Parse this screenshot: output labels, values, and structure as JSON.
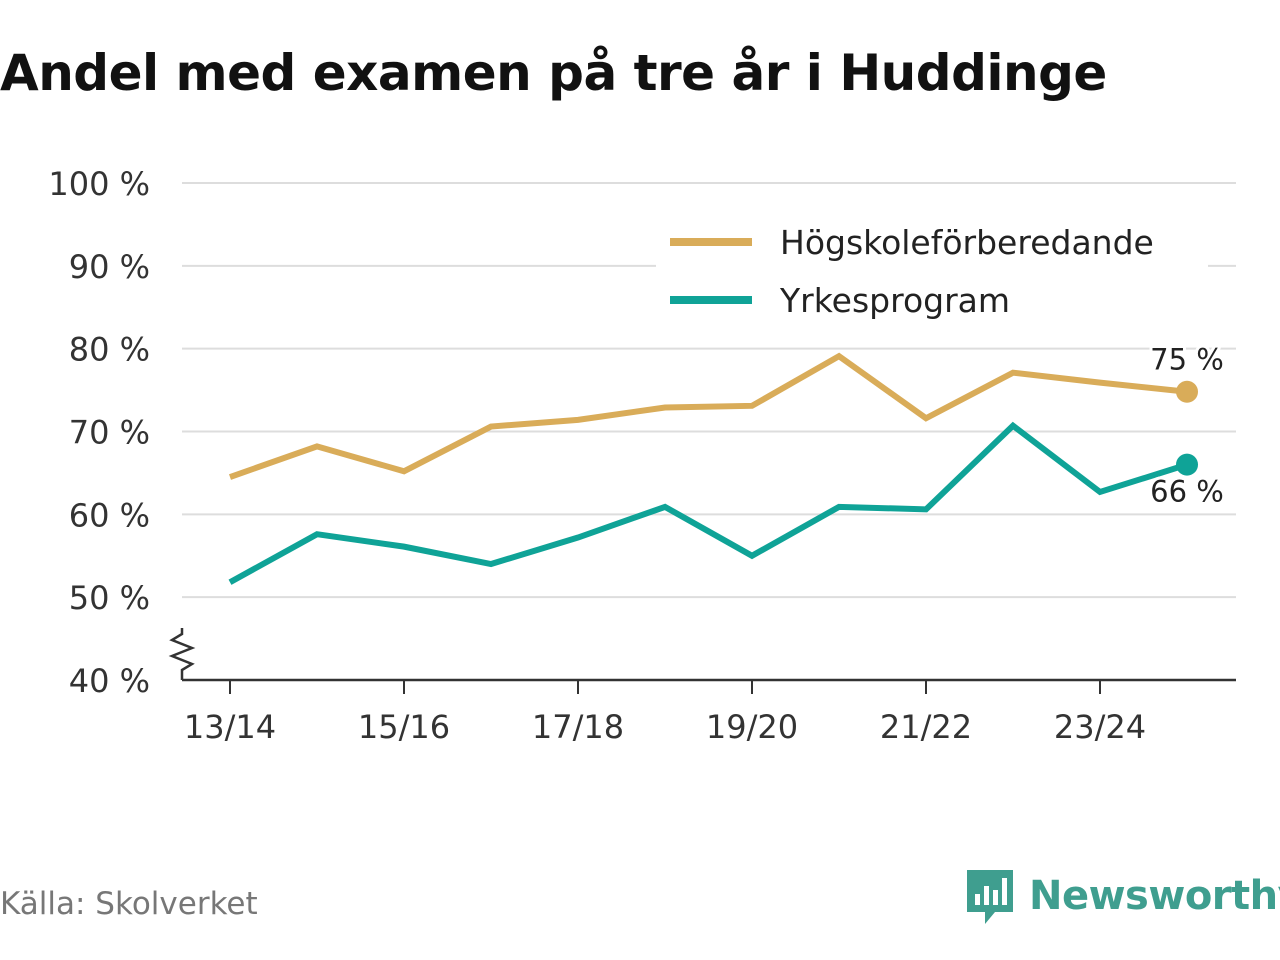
{
  "title": "Andel med examen på tre år i Huddinge",
  "source": "Källa: Skolverket",
  "brand": {
    "name": "Newsworthy",
    "icon": "newsworthy-logo-icon",
    "color": "#3f9e8f"
  },
  "chart_data": {
    "type": "line",
    "x": [
      "13/14",
      "14/15",
      "15/16",
      "16/17",
      "17/18",
      "18/19",
      "19/20",
      "20/21",
      "21/22",
      "22/23",
      "23/24",
      "24/25"
    ],
    "xticks": [
      "13/14",
      "15/16",
      "17/18",
      "19/20",
      "21/22",
      "23/24"
    ],
    "yticks": [
      40,
      50,
      60,
      70,
      80,
      90,
      100
    ],
    "ytick_suffix": " %",
    "ylim": [
      40,
      100
    ],
    "axis_break": true,
    "grid": true,
    "legend_position": "top-right",
    "series": [
      {
        "name": "Högskoleförberedande",
        "color": "#d9ac59",
        "values": [
          64.5,
          68.2,
          65.2,
          70.6,
          71.4,
          72.9,
          73.1,
          79.1,
          71.6,
          77.1,
          75.9,
          74.8
        ],
        "end_label": "75 %"
      },
      {
        "name": "Yrkesprogram",
        "color": "#0fa397",
        "values": [
          51.8,
          57.6,
          56.1,
          54.0,
          57.2,
          60.9,
          55.0,
          60.9,
          60.6,
          70.7,
          62.7,
          66.0
        ],
        "end_label": "66 %"
      }
    ]
  }
}
